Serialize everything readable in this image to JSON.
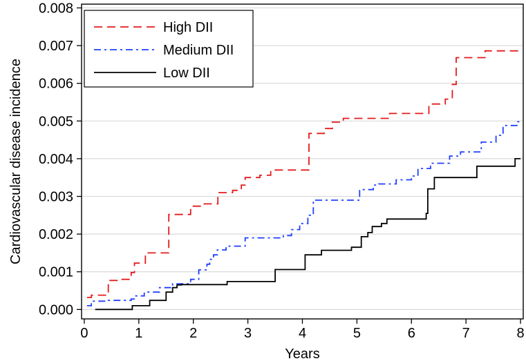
{
  "chart_data": {
    "type": "line",
    "title": "",
    "xlabel": "Years",
    "ylabel": "Cardiovascular disease incidence",
    "xlim": [
      -0.05,
      8.05
    ],
    "ylim": [
      -0.00025,
      0.0081
    ],
    "x_ticks": [
      0,
      1,
      2,
      3,
      4,
      5,
      6,
      7,
      8
    ],
    "x_tick_labels": [
      "0",
      "1",
      "2",
      "3",
      "4",
      "5",
      "6",
      "7",
      "8"
    ],
    "y_ticks": [
      0,
      0.001,
      0.002,
      0.003,
      0.004,
      0.005,
      0.006,
      0.007,
      0.008
    ],
    "y_tick_labels": [
      "0.000",
      "0.001",
      "0.002",
      "0.003",
      "0.004",
      "0.005",
      "0.006",
      "0.007",
      "0.008"
    ],
    "grid": "horizontal",
    "legend_position": "top-left",
    "step": true,
    "series": [
      {
        "name": "High DII",
        "color": "#e41a1c",
        "dash": "long-dash",
        "x": [
          0.05,
          0.13,
          0.44,
          0.63,
          0.86,
          0.92,
          1.12,
          1.55,
          1.95,
          2.2,
          2.45,
          2.72,
          2.88,
          2.95,
          3.08,
          3.22,
          3.42,
          4.12,
          4.4,
          4.55,
          4.75,
          5.6,
          6.32,
          6.62,
          6.75,
          6.82,
          7.35,
          8.0
        ],
        "y": [
          0.00032,
          0.00038,
          0.00077,
          0.0008,
          0.00098,
          0.00123,
          0.0015,
          0.00252,
          0.00274,
          0.0028,
          0.0031,
          0.00316,
          0.0033,
          0.0035,
          0.0035,
          0.00356,
          0.0037,
          0.00467,
          0.0048,
          0.00497,
          0.00507,
          0.0052,
          0.00545,
          0.00558,
          0.00597,
          0.00668,
          0.00686,
          0.00686
        ]
      },
      {
        "name": "Medium DII",
        "color": "#1f3fff",
        "dash": "dash-dot",
        "x": [
          0.05,
          0.13,
          0.44,
          0.86,
          0.93,
          1.1,
          1.38,
          1.62,
          1.95,
          2.1,
          2.25,
          2.3,
          2.37,
          2.44,
          2.6,
          2.95,
          3.65,
          3.8,
          3.95,
          4.1,
          4.2,
          4.85,
          5.05,
          5.3,
          5.4,
          5.72,
          6.0,
          6.12,
          6.35,
          6.7,
          6.9,
          7.28,
          7.55,
          7.68,
          7.95,
          8.0
        ],
        "y": [
          0.0001,
          0.00022,
          0.00024,
          0.00028,
          0.00036,
          0.00046,
          0.00058,
          0.00068,
          0.0008,
          0.00105,
          0.0012,
          0.00133,
          0.00145,
          0.00158,
          0.00168,
          0.0019,
          0.00196,
          0.00212,
          0.00228,
          0.0025,
          0.0029,
          0.0029,
          0.00318,
          0.0033,
          0.00333,
          0.00344,
          0.00354,
          0.00374,
          0.00388,
          0.00407,
          0.00418,
          0.00444,
          0.00462,
          0.00488,
          0.00498,
          0.00498
        ]
      },
      {
        "name": "Low DII",
        "color": "#000000",
        "dash": "solid",
        "x": [
          0.2,
          0.88,
          1.2,
          1.5,
          1.62,
          1.7,
          1.78,
          2.62,
          3.5,
          4.05,
          4.35,
          4.9,
          5.08,
          5.2,
          5.28,
          5.45,
          5.55,
          6.27,
          6.3,
          6.42,
          7.2,
          7.55,
          7.9,
          8.0
        ],
        "y": [
          0.0,
          0.0001,
          0.00024,
          0.00046,
          0.00058,
          0.00065,
          0.00066,
          0.00074,
          0.00106,
          0.00145,
          0.00157,
          0.00165,
          0.00193,
          0.00204,
          0.0022,
          0.00228,
          0.0024,
          0.00255,
          0.0032,
          0.0035,
          0.0038,
          0.0038,
          0.004,
          0.004
        ]
      }
    ]
  }
}
